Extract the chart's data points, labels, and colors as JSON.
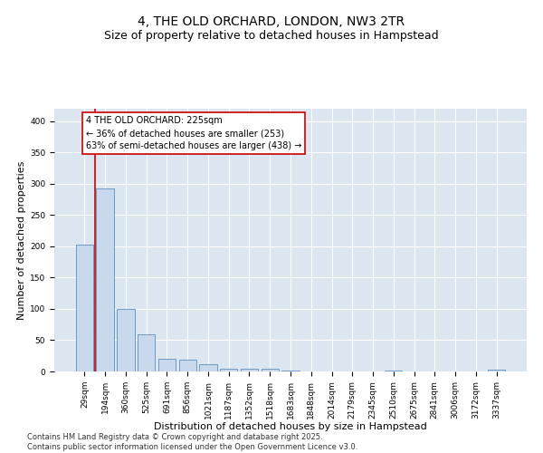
{
  "title_line1": "4, THE OLD ORCHARD, LONDON, NW3 2TR",
  "title_line2": "Size of property relative to detached houses in Hampstead",
  "xlabel": "Distribution of detached houses by size in Hampstead",
  "ylabel": "Number of detached properties",
  "categories": [
    "29sqm",
    "194sqm",
    "360sqm",
    "525sqm",
    "691sqm",
    "856sqm",
    "1021sqm",
    "1187sqm",
    "1352sqm",
    "1518sqm",
    "1683sqm",
    "1848sqm",
    "2014sqm",
    "2179sqm",
    "2345sqm",
    "2510sqm",
    "2675sqm",
    "2841sqm",
    "3006sqm",
    "3172sqm",
    "3337sqm"
  ],
  "values": [
    203,
    293,
    100,
    60,
    20,
    19,
    12,
    5,
    5,
    4,
    1,
    0,
    0,
    0,
    0,
    1,
    0,
    0,
    0,
    0,
    3
  ],
  "bar_color": "#c9d9ed",
  "bar_edge_color": "#5b8fbd",
  "annotation_text": "4 THE OLD ORCHARD: 225sqm\n← 36% of detached houses are smaller (253)\n63% of semi-detached houses are larger (438) →",
  "vline_color": "#cc0000",
  "annotation_box_color": "#cc0000",
  "ylim": [
    0,
    420
  ],
  "yticks": [
    0,
    50,
    100,
    150,
    200,
    250,
    300,
    350,
    400
  ],
  "background_color": "#ffffff",
  "plot_bg_color": "#dce6f1",
  "grid_color": "#ffffff",
  "footer": "Contains HM Land Registry data © Crown copyright and database right 2025.\nContains public sector information licensed under the Open Government Licence v3.0.",
  "title_fontsize": 10,
  "subtitle_fontsize": 9,
  "xlabel_fontsize": 8,
  "ylabel_fontsize": 8,
  "tick_fontsize": 6.5,
  "annotation_fontsize": 7,
  "footer_fontsize": 6
}
